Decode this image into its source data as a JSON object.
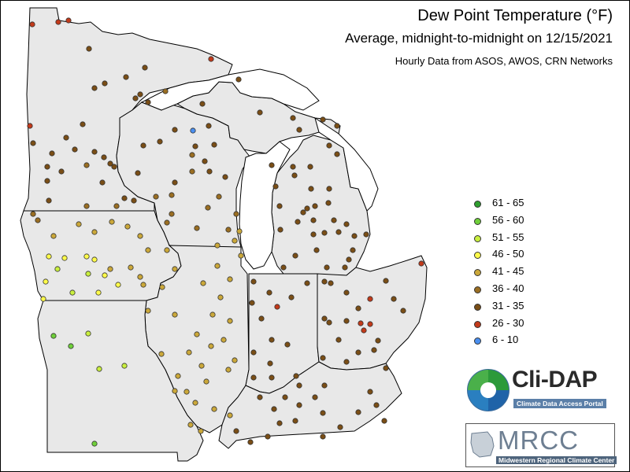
{
  "map": {
    "title": "Dew Point Temperature (°F)",
    "subtitle": "Average, midnight-to-midnight on 12/15/2021",
    "source_note": "Hourly Data from ASOS, AWOS, CRN Networks",
    "background_color": "#ffffff",
    "land_color": "#e8e8e8",
    "boundary_color": "#000000"
  },
  "legend": {
    "placement": "right",
    "bins": [
      {
        "label": "61 - 65",
        "color": "#2e9e2e"
      },
      {
        "label": "56 - 60",
        "color": "#6fcf3a"
      },
      {
        "label": "51 - 55",
        "color": "#c9ef3f"
      },
      {
        "label": "46 - 50",
        "color": "#fffb4a"
      },
      {
        "label": "41 - 45",
        "color": "#cba83a"
      },
      {
        "label": "36 - 40",
        "color": "#9a6e22"
      },
      {
        "label": "31 - 35",
        "color": "#7a4e16"
      },
      {
        "label": "26 - 30",
        "color": "#c23a1a"
      },
      {
        "label": "6 - 10",
        "color": "#4a8ff0"
      }
    ]
  },
  "logos": {
    "clidap_name": "Cli-DAP",
    "clidap_tagline": "Climate Data Access Portal",
    "mrcc_name": "MRCC",
    "mrcc_tagline": "Midwestern Regional Climate Center"
  }
}
